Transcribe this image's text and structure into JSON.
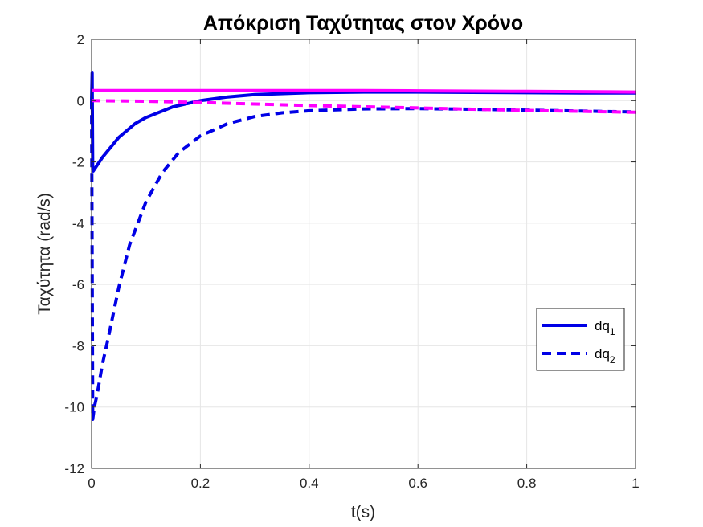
{
  "chart_data": {
    "type": "line",
    "title": "Απόκριση Ταχύτητας στον Χρόνο",
    "xlabel": "t(s)",
    "ylabel": "Ταχύτητα (rad/s)",
    "xlim": [
      0,
      1
    ],
    "ylim": [
      -12,
      2
    ],
    "x_ticks": [
      0,
      0.2,
      0.4,
      0.6,
      0.8,
      1
    ],
    "x_tick_labels": [
      "0",
      "0.2",
      "0.4",
      "0.6",
      "0.8",
      "1"
    ],
    "y_ticks": [
      -12,
      -10,
      -8,
      -6,
      -4,
      -2,
      0,
      2
    ],
    "y_tick_labels": [
      "-12",
      "-10",
      "-8",
      "-6",
      "-4",
      "-2",
      "0",
      "2"
    ],
    "grid": true,
    "legend_position": "right",
    "legend": [
      {
        "base": "dq",
        "sub": "1",
        "color": "#0000e6",
        "style": "solid"
      },
      {
        "base": "dq",
        "sub": "2",
        "color": "#0000e6",
        "style": "dashed"
      }
    ],
    "series": [
      {
        "name": "dq1",
        "color": "#0000e6",
        "style": "solid",
        "x": [
          0,
          0.001,
          0.002,
          0.003,
          0.02,
          0.05,
          0.08,
          0.1,
          0.15,
          0.2,
          0.25,
          0.3,
          0.4,
          0.5,
          0.6,
          0.7,
          0.8,
          0.9,
          1.0
        ],
        "y": [
          0,
          0.9,
          -2.25,
          -2.3,
          -1.85,
          -1.2,
          -0.75,
          -0.55,
          -0.2,
          0.0,
          0.12,
          0.2,
          0.26,
          0.28,
          0.28,
          0.27,
          0.26,
          0.25,
          0.25
        ]
      },
      {
        "name": "dq2",
        "color": "#0000e6",
        "style": "dashed",
        "x": [
          0,
          0.002,
          0.005,
          0.01,
          0.02,
          0.03,
          0.05,
          0.07,
          0.1,
          0.13,
          0.16,
          0.2,
          0.25,
          0.3,
          0.35,
          0.4,
          0.5,
          0.6,
          0.7,
          0.8,
          0.9,
          1.0
        ],
        "y": [
          0,
          -10.4,
          -10.0,
          -9.6,
          -8.6,
          -7.8,
          -6.1,
          -4.7,
          -3.3,
          -2.35,
          -1.7,
          -1.15,
          -0.75,
          -0.52,
          -0.4,
          -0.33,
          -0.27,
          -0.26,
          -0.28,
          -0.31,
          -0.34,
          -0.37
        ]
      },
      {
        "color": "#ff00ff",
        "style": "solid",
        "x": [
          0,
          0.2,
          0.4,
          0.5,
          0.6,
          0.8,
          1.0
        ],
        "y": [
          0.33,
          0.33,
          0.33,
          0.33,
          0.32,
          0.3,
          0.28
        ]
      },
      {
        "color": "#ff00ff",
        "style": "dashed",
        "x": [
          0,
          0.1,
          0.2,
          0.3,
          0.4,
          0.5,
          0.6,
          0.7,
          0.8,
          0.9,
          1.0
        ],
        "y": [
          0.0,
          -0.02,
          -0.06,
          -0.11,
          -0.16,
          -0.2,
          -0.24,
          -0.28,
          -0.32,
          -0.35,
          -0.38
        ]
      }
    ]
  }
}
